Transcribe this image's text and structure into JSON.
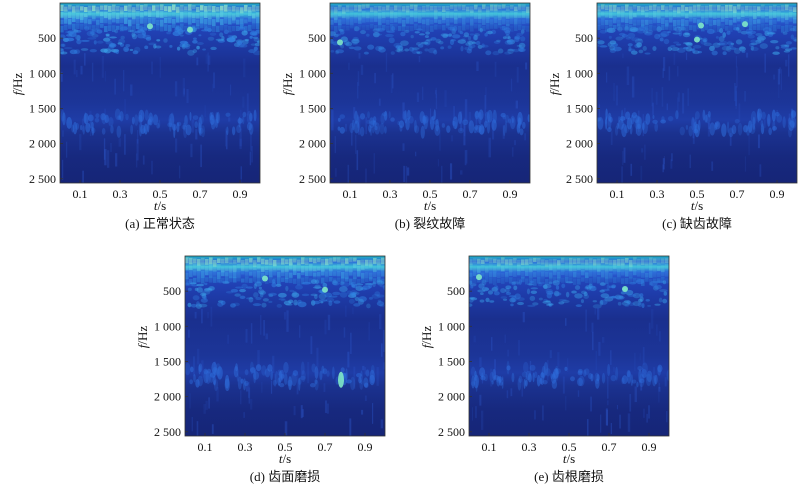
{
  "chart_data": [
    {
      "type": "heatmap",
      "caption": "(a) 正常状态",
      "xlabel_var": "t",
      "xlabel_unit": "/s",
      "ylabel_var": "f",
      "ylabel_unit": "/Hz",
      "xticks": [
        0.1,
        0.3,
        0.5,
        0.7,
        0.9
      ],
      "xtick_labels": [
        "0.1",
        "0.3",
        "0.5",
        "0.7",
        "0.9"
      ],
      "yticks": [
        500,
        1000,
        1500,
        2000,
        2500
      ],
      "ytick_labels": [
        "500",
        "1 000",
        "1 500",
        "2 000",
        "2 500"
      ],
      "xlim": [
        0,
        1
      ],
      "ylim": [
        0,
        2560
      ],
      "y_inverted": true,
      "colormap": "parula",
      "features": {
        "lowband_intensity": 0.95,
        "hot_spots": [
          [
            0.45,
            330
          ],
          [
            0.65,
            380
          ]
        ]
      }
    },
    {
      "type": "heatmap",
      "caption": "(b) 裂纹故障",
      "xlabel_var": "t",
      "xlabel_unit": "/s",
      "ylabel_var": "f",
      "ylabel_unit": "/Hz",
      "xticks": [
        0.1,
        0.3,
        0.5,
        0.7,
        0.9
      ],
      "xtick_labels": [
        "0.1",
        "0.3",
        "0.5",
        "0.7",
        "0.9"
      ],
      "yticks": [
        500,
        1000,
        1500,
        2000,
        2500
      ],
      "ytick_labels": [
        "500",
        "1 000",
        "1 500",
        "2 000",
        "2 500"
      ],
      "xlim": [
        0,
        1
      ],
      "ylim": [
        0,
        2560
      ],
      "y_inverted": true,
      "colormap": "parula",
      "features": {
        "lowband_intensity": 0.55,
        "hot_spots": [
          [
            0.05,
            560
          ]
        ]
      }
    },
    {
      "type": "heatmap",
      "caption": "(c) 缺齿故障",
      "xlabel_var": "t",
      "xlabel_unit": "/s",
      "ylabel_var": "f",
      "ylabel_unit": "/Hz",
      "xticks": [
        0.1,
        0.3,
        0.5,
        0.7,
        0.9
      ],
      "xtick_labels": [
        "0.1",
        "0.3",
        "0.5",
        "0.7",
        "0.9"
      ],
      "yticks": [
        500,
        1000,
        1500,
        2000,
        2500
      ],
      "ytick_labels": [
        "500",
        "1 000",
        "1 500",
        "2 000",
        "2 500"
      ],
      "xlim": [
        0,
        1
      ],
      "ylim": [
        0,
        2560
      ],
      "y_inverted": true,
      "colormap": "parula",
      "features": {
        "lowband_intensity": 0.7,
        "hot_spots": [
          [
            0.52,
            320
          ],
          [
            0.74,
            300
          ],
          [
            0.5,
            520
          ]
        ]
      }
    },
    {
      "type": "heatmap",
      "caption": "(d) 齿面磨损",
      "xlabel_var": "t",
      "xlabel_unit": "/s",
      "ylabel_var": "f",
      "ylabel_unit": "/Hz",
      "xticks": [
        0.1,
        0.3,
        0.5,
        0.7,
        0.9
      ],
      "xtick_labels": [
        "0.1",
        "0.3",
        "0.5",
        "0.7",
        "0.9"
      ],
      "yticks": [
        500,
        1000,
        1500,
        2000,
        2500
      ],
      "ytick_labels": [
        "500",
        "1 000",
        "1 500",
        "2 000",
        "2 500"
      ],
      "xlim": [
        0,
        1
      ],
      "ylim": [
        0,
        2560
      ],
      "y_inverted": true,
      "colormap": "parula",
      "features": {
        "lowband_intensity": 0.75,
        "hot_spots": [
          [
            0.4,
            320
          ],
          [
            0.7,
            480
          ],
          [
            0.78,
            1760
          ]
        ]
      }
    },
    {
      "type": "heatmap",
      "caption": "(e) 齿根磨损",
      "xlabel_var": "t",
      "xlabel_unit": "/s",
      "ylabel_var": "f",
      "ylabel_unit": "/Hz",
      "xticks": [
        0.1,
        0.3,
        0.5,
        0.7,
        0.9
      ],
      "xtick_labels": [
        "0.1",
        "0.3",
        "0.5",
        "0.7",
        "0.9"
      ],
      "yticks": [
        500,
        1000,
        1500,
        2000,
        2500
      ],
      "ytick_labels": [
        "500",
        "1 000",
        "1 500",
        "2 000",
        "2 500"
      ],
      "xlim": [
        0,
        1
      ],
      "ylim": [
        0,
        2560
      ],
      "y_inverted": true,
      "colormap": "parula",
      "features": {
        "lowband_intensity": 0.6,
        "hot_spots": [
          [
            0.78,
            470
          ],
          [
            0.05,
            300
          ]
        ]
      }
    }
  ]
}
